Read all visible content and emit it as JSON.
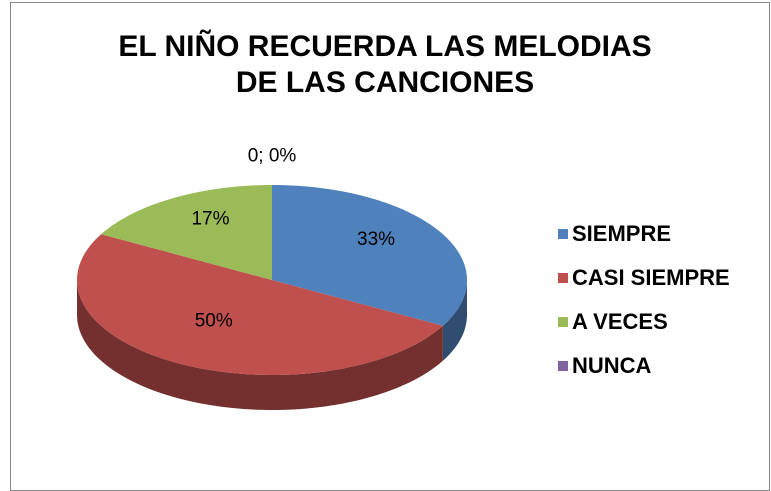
{
  "chart_data": {
    "type": "pie3d",
    "title": [
      "EL NIÑO RECUERDA LAS MELODIAS",
      "DE LAS CANCIONES"
    ],
    "categories": [
      "SIEMPRE",
      "CASI SIEMPRE",
      "A VECES",
      "NUNCA"
    ],
    "values": [
      33,
      50,
      17,
      0
    ],
    "value_labels": [
      "33%",
      "50%",
      "17%",
      "0; 0%"
    ],
    "colors": [
      "#4f81bd",
      "#c0504d",
      "#9bbb59",
      "#8064a2"
    ],
    "legend": "right"
  }
}
